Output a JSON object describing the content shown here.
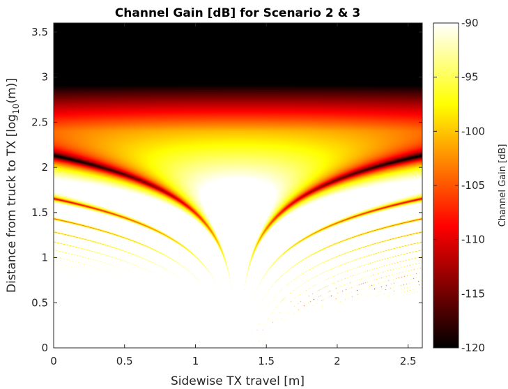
{
  "chart_data": {
    "type": "heatmap",
    "title": "Channel Gain [dB] for Scenario 2 & 3",
    "xlabel": "Sidewise TX travel [m]",
    "ylabel_parts": [
      "Distance from truck to TX [log",
      "10",
      "(m)]"
    ],
    "colorbar_label": "Channel Gain [dB]",
    "colormap": "hot",
    "xlim": [
      0,
      2.6
    ],
    "ylim": [
      0,
      3.6
    ],
    "clim": [
      -120,
      -90
    ],
    "x_ticks": [
      {
        "value": 0,
        "label": "0"
      },
      {
        "value": 0.5,
        "label": "0.5"
      },
      {
        "value": 1,
        "label": "1"
      },
      {
        "value": 1.5,
        "label": "1.5"
      },
      {
        "value": 2,
        "label": "2"
      },
      {
        "value": 2.5,
        "label": "2.5"
      }
    ],
    "y_ticks": [
      {
        "value": 0,
        "label": "0"
      },
      {
        "value": 0.5,
        "label": "0.5"
      },
      {
        "value": 1,
        "label": "1"
      },
      {
        "value": 1.5,
        "label": "1.5"
      },
      {
        "value": 2,
        "label": "2"
      },
      {
        "value": 2.5,
        "label": "2.5"
      },
      {
        "value": 3,
        "label": "3"
      },
      {
        "value": 3.5,
        "label": "3.5"
      }
    ],
    "colorbar_ticks": [
      {
        "value": -90,
        "label": "-90"
      },
      {
        "value": -95,
        "label": "-95"
      },
      {
        "value": -100,
        "label": "-100"
      },
      {
        "value": -105,
        "label": "-105"
      },
      {
        "value": -110,
        "label": "-110"
      },
      {
        "value": -115,
        "label": "-115"
      },
      {
        "value": -120,
        "label": "-120"
      }
    ],
    "grid": false
  }
}
